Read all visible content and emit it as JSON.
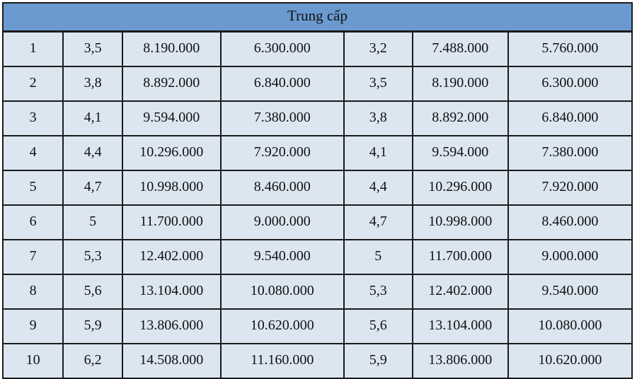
{
  "table": {
    "title": "Trung cấp",
    "header_bg": "#6b9ad0",
    "body_bg": "#dce6f1",
    "border_color": "#1b1b1b",
    "text_color": "#111111",
    "columns": 7,
    "rows": [
      [
        "1",
        "3,5",
        "8.190.000",
        "6.300.000",
        "3,2",
        "7.488.000",
        "5.760.000"
      ],
      [
        "2",
        "3,8",
        "8.892.000",
        "6.840.000",
        "3,5",
        "8.190.000",
        "6.300.000"
      ],
      [
        "3",
        "4,1",
        "9.594.000",
        "7.380.000",
        "3,8",
        "8.892.000",
        "6.840.000"
      ],
      [
        "4",
        "4,4",
        "10.296.000",
        "7.920.000",
        "4,1",
        "9.594.000",
        "7.380.000"
      ],
      [
        "5",
        "4,7",
        "10.998.000",
        "8.460.000",
        "4,4",
        "10.296.000",
        "7.920.000"
      ],
      [
        "6",
        "5",
        "11.700.000",
        "9.000.000",
        "4,7",
        "10.998.000",
        "8.460.000"
      ],
      [
        "7",
        "5,3",
        "12.402.000",
        "9.540.000",
        "5",
        "11.700.000",
        "9.000.000"
      ],
      [
        "8",
        "5,6",
        "13.104.000",
        "10.080.000",
        "5,3",
        "12.402.000",
        "9.540.000"
      ],
      [
        "9",
        "5,9",
        "13.806.000",
        "10.620.000",
        "5,6",
        "13.104.000",
        "10.080.000"
      ],
      [
        "10",
        "6,2",
        "14.508.000",
        "11.160.000",
        "5,9",
        "13.806.000",
        "10.620.000"
      ]
    ]
  }
}
